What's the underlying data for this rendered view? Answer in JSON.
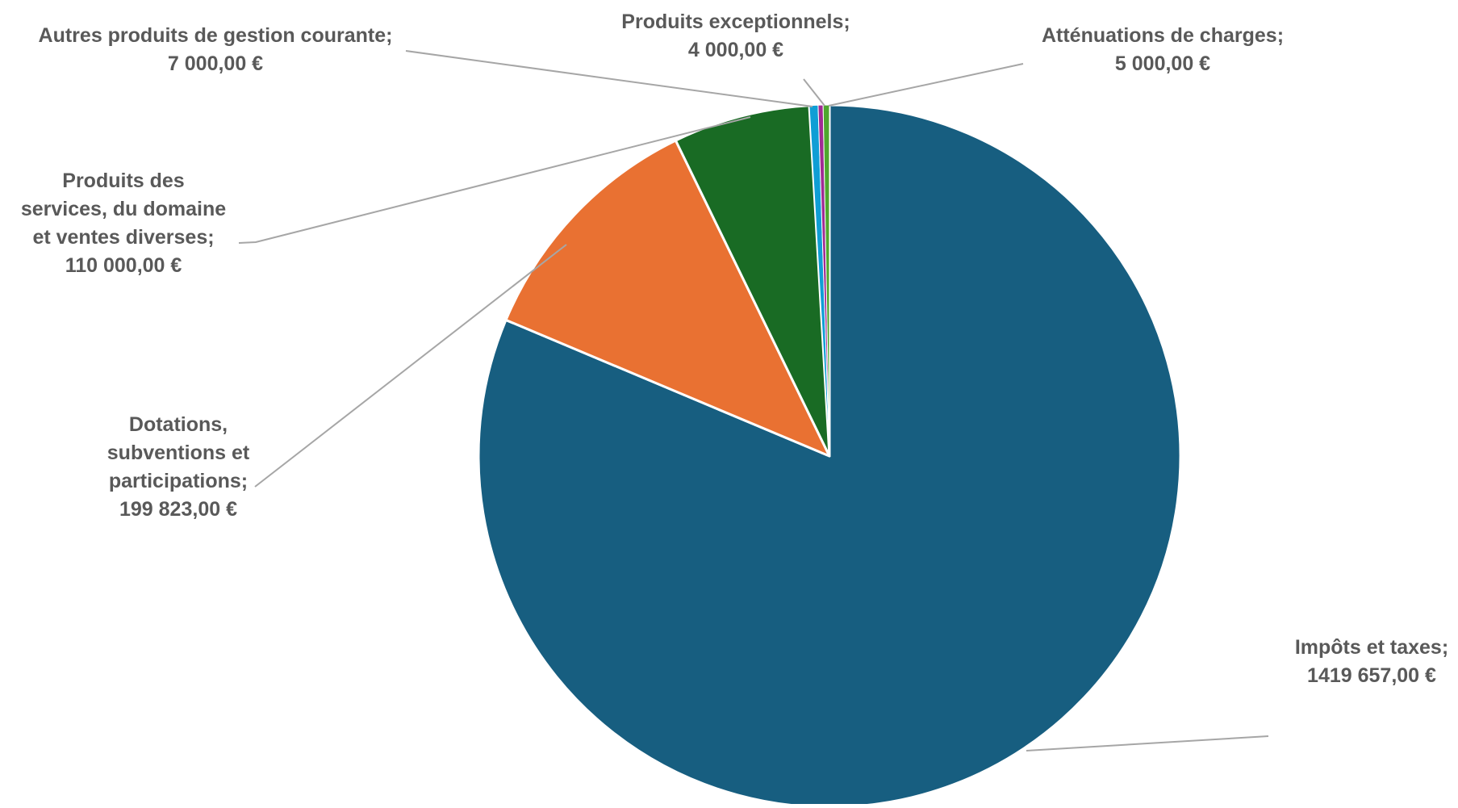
{
  "chart_data": {
    "type": "pie",
    "title": "",
    "slices": [
      {
        "name": "Impôts et taxes",
        "value": 1419657.0,
        "value_label": "1419 657,00 €",
        "color": "#175E80"
      },
      {
        "name": "Dotations, subventions et participations",
        "value": 199823.0,
        "value_label": "199 823,00 €",
        "color": "#E97132"
      },
      {
        "name": "Produits des services, du domaine et ventes diverses",
        "value": 110000.0,
        "value_label": "110 000,00 €",
        "color": "#196B24"
      },
      {
        "name": "Autres produits de gestion courante",
        "value": 7000.0,
        "value_label": "7 000,00 €",
        "color": "#0F9ED5"
      },
      {
        "name": "Produits exceptionnels",
        "value": 4000.0,
        "value_label": "4 000,00 €",
        "color": "#A02B93"
      },
      {
        "name": "Atténuations de charges",
        "value": 5000.0,
        "value_label": "5 000,00 €",
        "color": "#4EA72E"
      }
    ],
    "start_angle": "12 o'clock",
    "direction": "clockwise",
    "legend": "none",
    "data_labels": "outside with leader lines",
    "slice_border_color": "#ffffff",
    "label_color": "#595959",
    "leader_line_color": "#A6A6A6"
  }
}
